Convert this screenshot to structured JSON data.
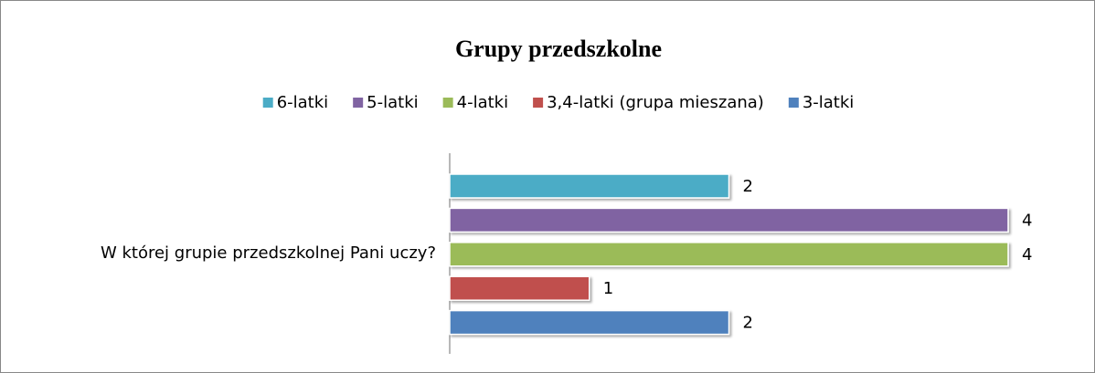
{
  "chart_data": {
    "type": "bar",
    "orientation": "horizontal",
    "title": "Grupy przedszkolne",
    "categories": [
      "W której grupie przedszkolnej Pani uczy?"
    ],
    "series": [
      {
        "name": "6-latki",
        "color": "#4bacc6",
        "values": [
          2
        ]
      },
      {
        "name": "5-latki",
        "color": "#8064a2",
        "values": [
          4
        ]
      },
      {
        "name": "4-latki",
        "color": "#9bbb59",
        "values": [
          4
        ]
      },
      {
        "name": "3,4-latki (grupa mieszana)",
        "color": "#c0504d",
        "values": [
          1
        ]
      },
      {
        "name": "3-latki",
        "color": "#4f81bd",
        "values": [
          2
        ]
      }
    ],
    "xlim": [
      0,
      4
    ],
    "legend": "top",
    "data_labels": true
  }
}
